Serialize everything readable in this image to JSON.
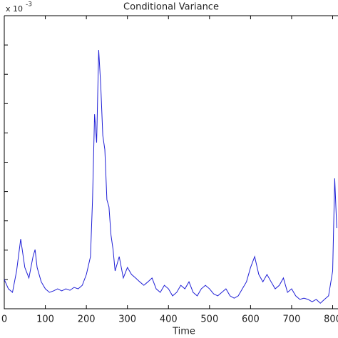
{
  "chart_data": {
    "type": "line",
    "title": "Conditional Variance",
    "x_label": "Time",
    "y_multiplier": {
      "base": "x 10",
      "exponent": "-3"
    },
    "x": [
      0,
      10,
      20,
      30,
      40,
      50,
      60,
      70,
      75,
      80,
      90,
      100,
      110,
      120,
      130,
      140,
      150,
      160,
      170,
      180,
      190,
      200,
      210,
      215,
      220,
      225,
      230,
      235,
      240,
      245,
      250,
      255,
      260,
      265,
      270,
      280,
      290,
      300,
      310,
      320,
      330,
      340,
      350,
      360,
      370,
      380,
      390,
      400,
      410,
      420,
      430,
      440,
      450,
      460,
      470,
      480,
      490,
      500,
      510,
      520,
      530,
      540,
      550,
      560,
      570,
      580,
      590,
      600,
      610,
      620,
      630,
      640,
      650,
      660,
      670,
      680,
      690,
      700,
      710,
      720,
      730,
      740,
      750,
      760,
      770,
      780,
      790,
      800,
      805,
      810
    ],
    "series": [
      {
        "color": "#1f1fd6",
        "values": [
          1.0,
          0.68,
          0.56,
          1.29,
          2.38,
          1.41,
          1.05,
          1.78,
          2.02,
          1.41,
          0.92,
          0.68,
          0.56,
          0.61,
          0.68,
          0.61,
          0.68,
          0.63,
          0.73,
          0.68,
          0.8,
          1.17,
          1.78,
          3.72,
          6.64,
          5.67,
          8.83,
          7.62,
          5.91,
          5.43,
          3.72,
          3.48,
          2.51,
          2.02,
          1.29,
          1.78,
          1.05,
          1.41,
          1.17,
          1.05,
          0.92,
          0.8,
          0.92,
          1.05,
          0.68,
          0.56,
          0.8,
          0.68,
          0.44,
          0.56,
          0.8,
          0.68,
          0.92,
          0.56,
          0.44,
          0.68,
          0.8,
          0.68,
          0.51,
          0.44,
          0.56,
          0.68,
          0.44,
          0.36,
          0.44,
          0.68,
          0.92,
          1.41,
          1.78,
          1.17,
          0.92,
          1.17,
          0.92,
          0.68,
          0.8,
          1.05,
          0.56,
          0.68,
          0.44,
          0.32,
          0.36,
          0.32,
          0.24,
          0.32,
          0.19,
          0.32,
          0.44,
          1.29,
          4.45,
          2.75
        ]
      }
    ],
    "xlim": [
      0,
      813
    ],
    "xticks": [
      0,
      100,
      200,
      300,
      400,
      500,
      600,
      700,
      800
    ],
    "ylim": [
      0,
      10
    ],
    "yticks": [
      1,
      2,
      3,
      4,
      5,
      6,
      7,
      8,
      9
    ]
  }
}
